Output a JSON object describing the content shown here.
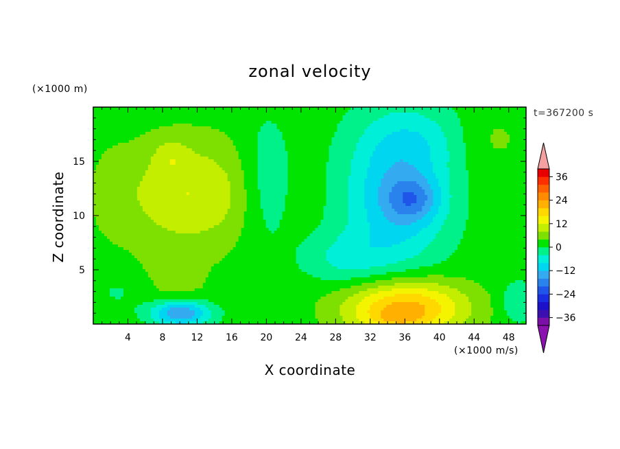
{
  "chart_data": {
    "type": "heatmap",
    "title": "zonal velocity",
    "xlabel": "X coordinate",
    "ylabel": "Z coordinate",
    "y_unit_label": "(×1000 m)",
    "colorbar_unit_label": "(×1000 m/s)",
    "time_label": "t=367200 s",
    "x_range": [
      0,
      50
    ],
    "y_range": [
      0,
      20
    ],
    "x_ticks": [
      "4",
      "8",
      "12",
      "16",
      "20",
      "24",
      "28",
      "32",
      "36",
      "40",
      "44",
      "48"
    ],
    "x_tick_values": [
      4,
      8,
      12,
      16,
      20,
      24,
      28,
      32,
      36,
      40,
      44,
      48
    ],
    "y_ticks": [
      "5",
      "10",
      "15"
    ],
    "y_tick_values": [
      5,
      10,
      15
    ],
    "colorbar": {
      "levels": [
        -40,
        -36,
        -32,
        -28,
        -24,
        -20,
        -16,
        -12,
        -8,
        -4,
        0,
        4,
        8,
        12,
        16,
        20,
        24,
        28,
        32,
        36,
        40
      ],
      "colors": [
        "#7b0fa8",
        "#3b0fb0",
        "#1c10c8",
        "#1a2de0",
        "#1f55e8",
        "#2a82ec",
        "#34aaf0",
        "#00d6f0",
        "#00efd8",
        "#00f08a",
        "#00e400",
        "#7ee000",
        "#c4ee00",
        "#f4f400",
        "#ffd800",
        "#ffb000",
        "#ff8c00",
        "#ff6000",
        "#ff3000",
        "#e80000"
      ],
      "under_color": "#8c12b0",
      "over_color": "#f4a0a0",
      "tick_labels": [
        "36",
        "24",
        "12",
        "0",
        "−12",
        "−24",
        "−36"
      ],
      "tick_values": [
        36,
        24,
        12,
        0,
        -12,
        -24,
        -36
      ]
    },
    "features": [
      {
        "x": 11,
        "z": 12,
        "u": 10,
        "sx": 8,
        "sz": 5
      },
      {
        "x": 9,
        "z": 15.5,
        "u": 4,
        "sx": 2,
        "sz": 1.5
      },
      {
        "x": 8,
        "z": 3,
        "u": 4,
        "sx": 5,
        "sz": 3
      },
      {
        "x": 10,
        "z": 1,
        "u": -20,
        "sx": 3.5,
        "sz": 1.2
      },
      {
        "x": 4,
        "z": 3,
        "u": -4,
        "sx": 4,
        "sz": 2
      },
      {
        "x": 20,
        "z": 13,
        "u": -6,
        "sx": 3,
        "sz": 6
      },
      {
        "x": 35,
        "z": 12,
        "u": -14,
        "sx": 6,
        "sz": 7
      },
      {
        "x": 37,
        "z": 11.5,
        "u": -10,
        "sx": 3,
        "sz": 2
      },
      {
        "x": 38,
        "z": 17,
        "u": -4,
        "sx": 6,
        "sz": 3
      },
      {
        "x": 46,
        "z": 17,
        "u": 3,
        "sx": 4,
        "sz": 3
      },
      {
        "x": 29,
        "z": 6,
        "u": -6,
        "sx": 5,
        "sz": 2.5
      },
      {
        "x": 36,
        "z": 1.5,
        "u": 21,
        "sx": 7,
        "sz": 2.6
      },
      {
        "x": 35,
        "z": 0.5,
        "u": 4,
        "sx": 3,
        "sz": 0.8
      },
      {
        "x": 49,
        "z": 2,
        "u": -6,
        "sx": 2,
        "sz": 2
      },
      {
        "x": 2,
        "z": 12,
        "u": 2,
        "sx": 2,
        "sz": 4
      }
    ]
  }
}
